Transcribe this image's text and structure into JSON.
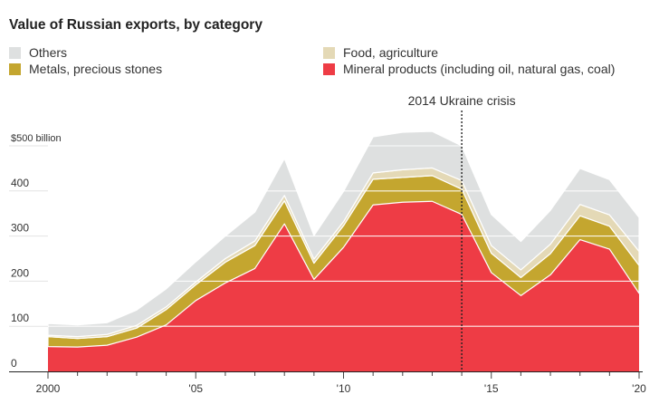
{
  "title": "Value of Russian exports, by category",
  "chart_data": {
    "type": "area",
    "stacked": true,
    "title": "Value of Russian exports, by category",
    "x": [
      2000,
      2001,
      2002,
      2003,
      2004,
      2005,
      2006,
      2007,
      2008,
      2009,
      2010,
      2011,
      2012,
      2013,
      2014,
      2015,
      2016,
      2017,
      2018,
      2019,
      2020
    ],
    "series": [
      {
        "name": "Mineral products (including oil, natural gas, coal)",
        "color": "#ee3c45",
        "values": [
          55,
          54,
          58,
          76,
          103,
          157,
          196,
          228,
          327,
          204,
          275,
          369,
          375,
          377,
          348,
          219,
          168,
          214,
          292,
          271,
          173
        ]
      },
      {
        "name": "Metals, precious stones",
        "color": "#c4a62f",
        "values": [
          22,
          19,
          19,
          20,
          34,
          35,
          46,
          51,
          51,
          36,
          48,
          57,
          55,
          57,
          56,
          43,
          40,
          47,
          53,
          51,
          62
        ]
      },
      {
        "name": "Food, agriculture",
        "color": "#e4d9b6",
        "values": [
          3,
          4,
          5,
          6,
          6,
          6,
          8,
          10,
          12,
          9,
          9,
          14,
          17,
          17,
          19,
          17,
          17,
          21,
          25,
          25,
          31
        ]
      },
      {
        "name": "Others",
        "color": "#dee0e0",
        "values": [
          26,
          26,
          26,
          34,
          40,
          45,
          50,
          64,
          82,
          52,
          67,
          80,
          83,
          81,
          77,
          69,
          63,
          75,
          80,
          78,
          75
        ]
      }
    ],
    "y_axis": {
      "min": 0,
      "max": 500,
      "ticks": [
        0,
        100,
        200,
        300,
        400,
        500
      ],
      "tick_labels": [
        "0",
        "100",
        "200",
        "300",
        "400",
        "$500 billion"
      ]
    },
    "x_axis": {
      "ticks": [
        2000,
        2005,
        2010,
        2015,
        2020
      ],
      "tick_labels": [
        "2000",
        "'05",
        "'10",
        "'15",
        "'20"
      ]
    },
    "annotation": {
      "label": "2014 Ukraine crisis",
      "x": 2014
    },
    "grid": true,
    "legend_position": "top"
  },
  "legend": {
    "items": [
      {
        "label": "Others",
        "color": "#dee0e0"
      },
      {
        "label": "Food, agriculture",
        "color": "#e4d9b6"
      },
      {
        "label": "Metals, precious stones",
        "color": "#c4a62f"
      },
      {
        "label": "Mineral products (including oil, natural gas, coal)",
        "color": "#ee3c45"
      }
    ]
  }
}
